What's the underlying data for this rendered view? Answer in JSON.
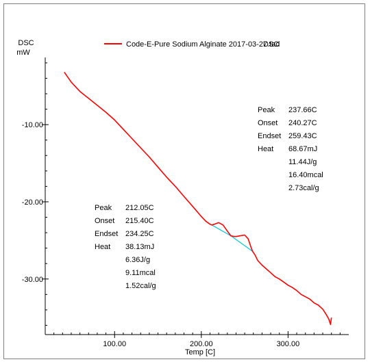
{
  "chart_data": {
    "type": "line",
    "ylabel_top": "DSC",
    "ylabel_unit": "mW",
    "xlabel": "Temp  [C]",
    "xlim": [
      20,
      370
    ],
    "ylim": [
      -37.2,
      -1.3
    ],
    "x_ticks": [
      100,
      200,
      300
    ],
    "x_tick_labels": [
      "100.00",
      "200.00",
      "300.00"
    ],
    "y_ticks": [
      -10,
      -20,
      -30
    ],
    "y_tick_labels": [
      "-10.00",
      "-20.00",
      "-30.00"
    ],
    "grid": false,
    "legend": {
      "placement": "top",
      "entries": [
        {
          "label": "Code-E-Pure Sodium Alginate 2017-03-27.tad",
          "suffix": "DSC",
          "color": "#ff0000"
        }
      ]
    },
    "series": [
      {
        "name": "Code-E-Pure Sodium Alginate 2017-03-27.tad",
        "color": "#ff0000",
        "points": [
          [
            42,
            -3.2
          ],
          [
            50,
            -4.5
          ],
          [
            60,
            -5.7
          ],
          [
            70,
            -6.6
          ],
          [
            80,
            -7.5
          ],
          [
            90,
            -8.4
          ],
          [
            100,
            -9.4
          ],
          [
            110,
            -10.6
          ],
          [
            120,
            -11.8
          ],
          [
            130,
            -13.0
          ],
          [
            140,
            -14.2
          ],
          [
            150,
            -15.5
          ],
          [
            160,
            -16.8
          ],
          [
            170,
            -18.0
          ],
          [
            180,
            -19.3
          ],
          [
            190,
            -20.6
          ],
          [
            200,
            -21.9
          ],
          [
            205,
            -22.5
          ],
          [
            210,
            -22.9
          ],
          [
            212,
            -23.0
          ],
          [
            215,
            -22.9
          ],
          [
            220,
            -22.7
          ],
          [
            225,
            -23.0
          ],
          [
            230,
            -23.8
          ],
          [
            234,
            -24.4
          ],
          [
            238,
            -24.5
          ],
          [
            240,
            -24.5
          ],
          [
            245,
            -24.4
          ],
          [
            250,
            -24.3
          ],
          [
            254,
            -24.8
          ],
          [
            257,
            -25.8
          ],
          [
            259,
            -26.4
          ],
          [
            262,
            -26.9
          ],
          [
            265,
            -27.6
          ],
          [
            270,
            -28.2
          ],
          [
            275,
            -28.7
          ],
          [
            280,
            -29.2
          ],
          [
            285,
            -29.7
          ],
          [
            290,
            -30.0
          ],
          [
            295,
            -30.4
          ],
          [
            300,
            -30.8
          ],
          [
            305,
            -31.1
          ],
          [
            310,
            -31.5
          ],
          [
            315,
            -32.0
          ],
          [
            320,
            -32.3
          ],
          [
            325,
            -32.6
          ],
          [
            330,
            -33.1
          ],
          [
            335,
            -33.4
          ],
          [
            340,
            -33.9
          ],
          [
            344,
            -34.6
          ],
          [
            347,
            -35.2
          ],
          [
            349,
            -35.9
          ],
          [
            350,
            -35.0
          ]
        ]
      }
    ],
    "baselines": [
      {
        "color": "#00c8d8",
        "points": [
          [
            212,
            -23.0
          ],
          [
            234,
            -24.4
          ]
        ]
      },
      {
        "color": "#00c8d8",
        "points": [
          [
            234,
            -24.4
          ],
          [
            259,
            -26.4
          ]
        ]
      }
    ],
    "annotations": [
      {
        "rows": [
          {
            "label": "Peak",
            "value": "237.66C"
          },
          {
            "label": "Onset",
            "value": "240.27C"
          },
          {
            "label": "Endset",
            "value": "259.43C"
          },
          {
            "label": "Heat",
            "value": "68.67mJ"
          },
          {
            "label": "",
            "value": "11.44J/g"
          },
          {
            "label": "",
            "value": "16.40mcal"
          },
          {
            "label": "",
            "value": "2.73cal/g"
          }
        ]
      },
      {
        "rows": [
          {
            "label": "Peak",
            "value": "212.05C"
          },
          {
            "label": "Onset",
            "value": "215.40C"
          },
          {
            "label": "Endset",
            "value": "234.25C"
          },
          {
            "label": "Heat",
            "value": "38.13mJ"
          },
          {
            "label": "",
            "value": "6.36J/g"
          },
          {
            "label": "",
            "value": "9.11mcal"
          },
          {
            "label": "",
            "value": "1.52cal/g"
          }
        ]
      }
    ]
  }
}
